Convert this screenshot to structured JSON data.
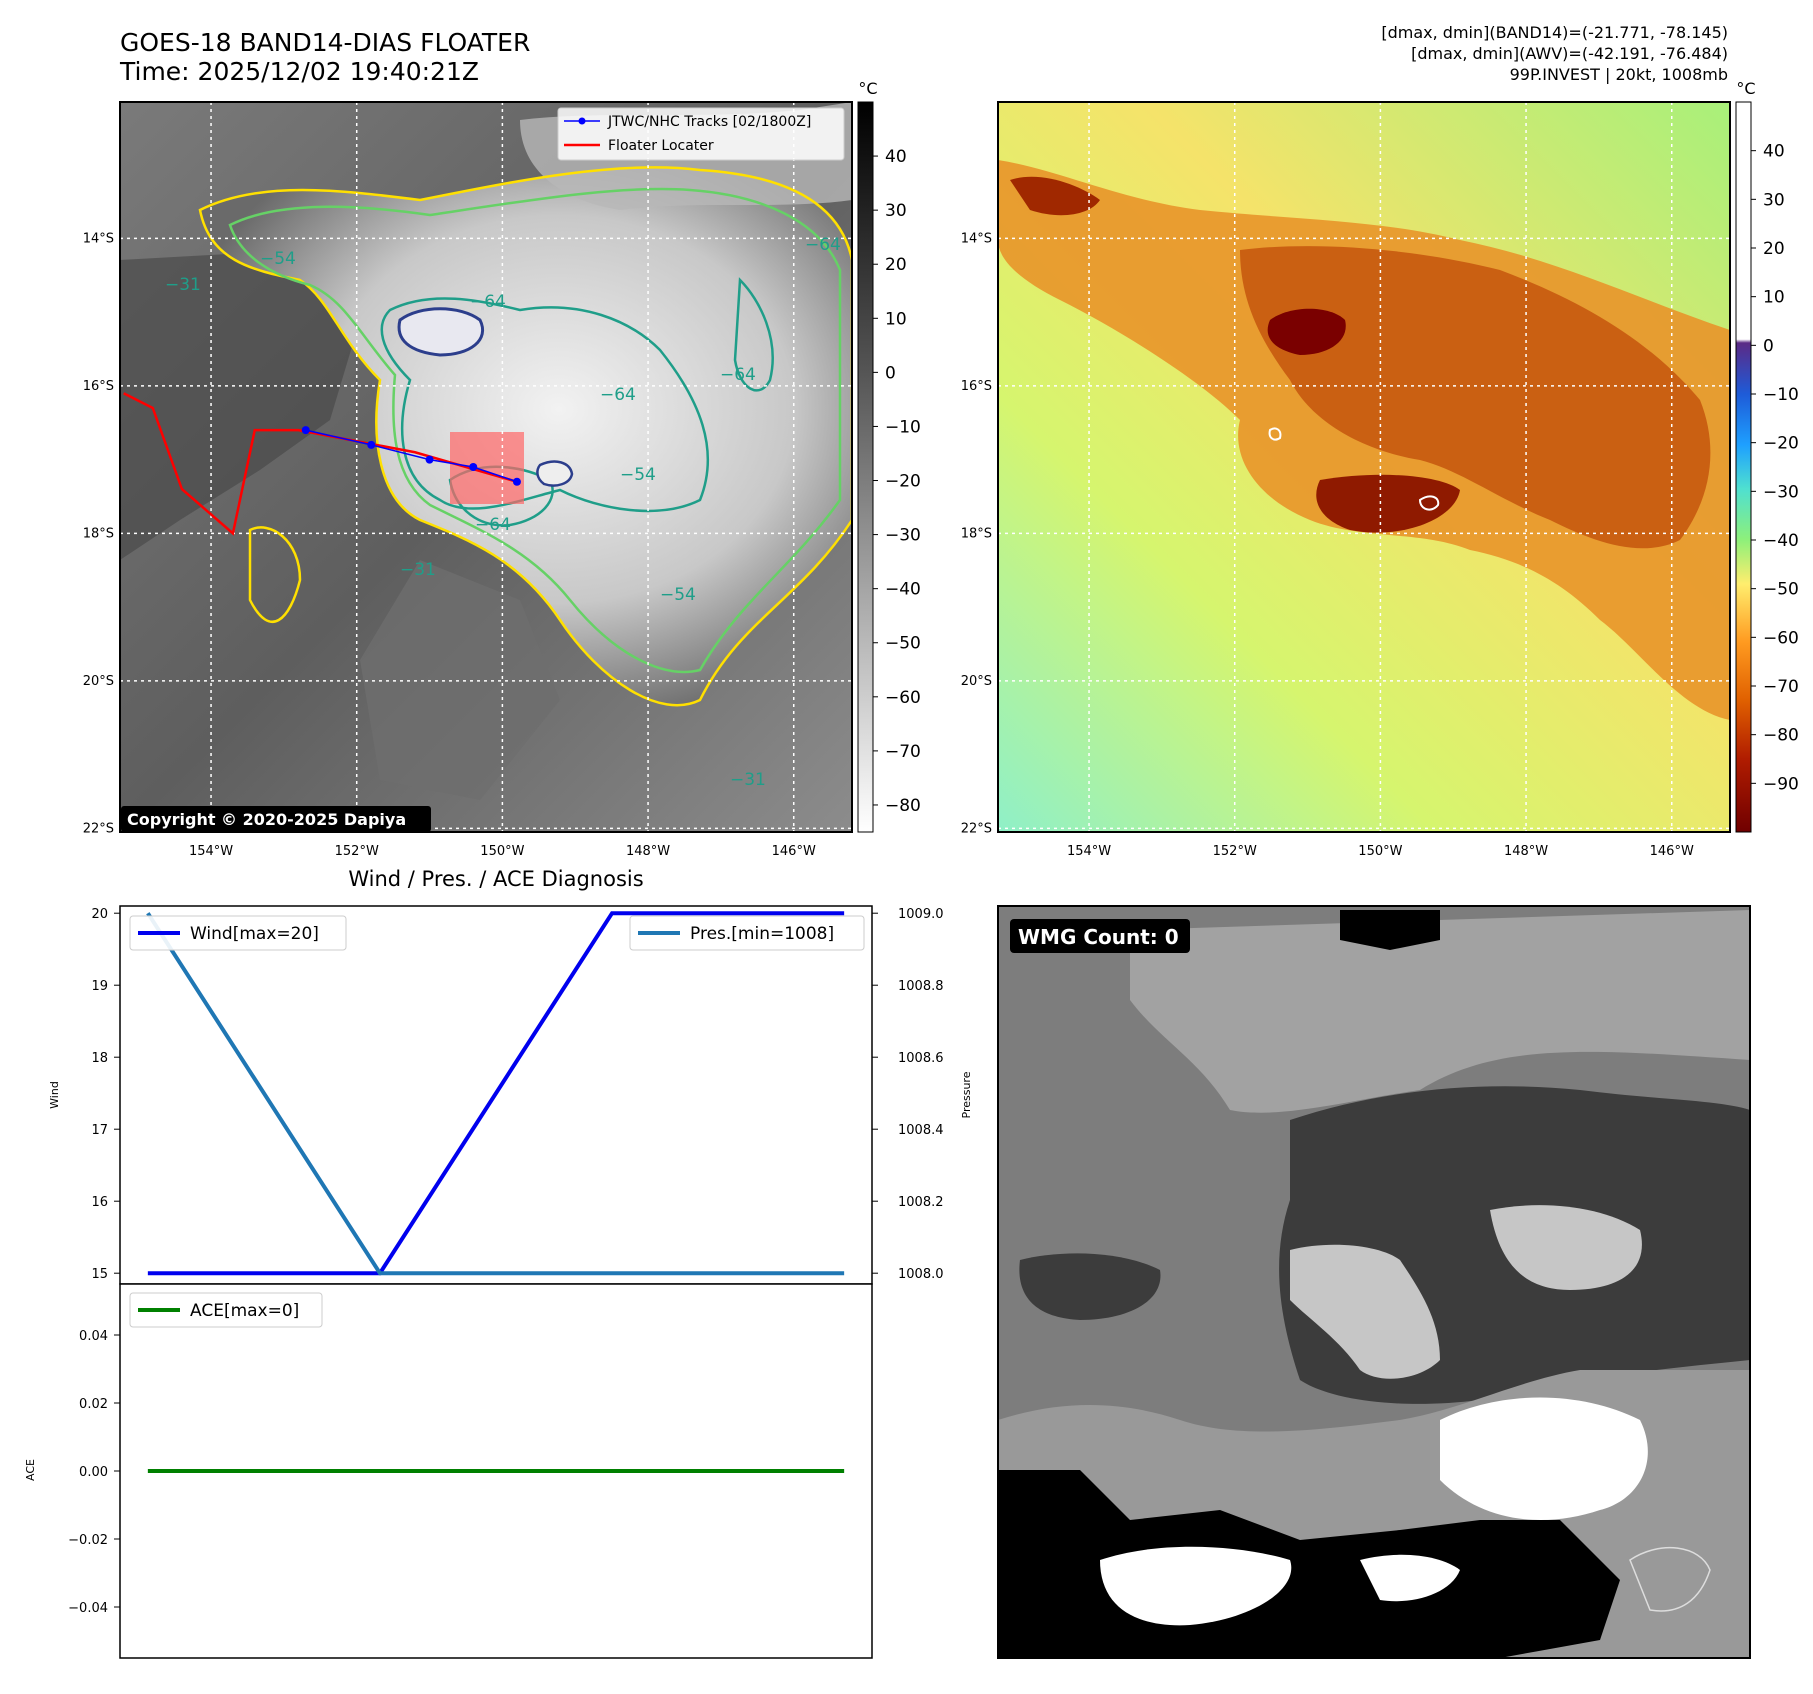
{
  "header": {
    "title": "GOES-18 BAND14-DIAS FLOATER",
    "time": "Time: 2025/12/02 19:40:21Z",
    "info_line1": "[dmax, dmin](BAND14)=(-21.771, -78.145)",
    "info_line2": "[dmax, dmin](AWV)=(-42.191, -76.484)",
    "info_line3": "99P.INVEST | 20kt, 1008mb",
    "copyright": "Copyright © 2020-2025 Dapiya",
    "wmg_label": "WMG Count: 0"
  },
  "colors": {
    "wind": "#0000ee",
    "pressure": "#1f77b4",
    "ace": "#008000",
    "track": "#0000ff",
    "locater": "#ff0000",
    "contour_yellow": "#ffe000",
    "contour_green": "#66d166",
    "contour_teal": "#1f9e89",
    "contour_navy": "#2c3e8c"
  },
  "map": {
    "lat_ticks": [
      "14°S",
      "16°S",
      "18°S",
      "20°S",
      "22°S"
    ],
    "lon_ticks": [
      "154°W",
      "152°W",
      "150°W",
      "148°W",
      "146°W"
    ],
    "lon_values": [
      -154,
      -152,
      -150,
      -148,
      -146
    ],
    "lat_values": [
      -14,
      -16,
      -18,
      -20,
      -22
    ],
    "lon_range": [
      -155.25,
      -145.2
    ],
    "lat_range": [
      -12.15,
      -22.05
    ],
    "contour_labels": [
      "−54",
      "−64",
      "−31",
      "−54",
      "−64",
      "−64",
      "−64",
      "−31",
      "−54",
      "−64",
      "−31"
    ],
    "legend_tracks": "JTWC/NHC Tracks [02/1800Z]",
    "legend_locater": "Floater Locater",
    "track_points": [
      [
        -152.7,
        -16.6
      ],
      [
        -151.8,
        -16.8
      ],
      [
        -151.0,
        -17.0
      ],
      [
        -150.4,
        -17.1
      ],
      [
        -149.8,
        -17.3
      ]
    ],
    "locater_points": [
      [
        -155.2,
        -16.1
      ],
      [
        -154.8,
        -16.3
      ],
      [
        -154.4,
        -17.4
      ],
      [
        -153.7,
        -18.0
      ],
      [
        -153.4,
        -16.6
      ],
      [
        -152.8,
        -16.6
      ],
      [
        -151.2,
        -16.9
      ],
      [
        -149.8,
        -17.3
      ]
    ]
  },
  "colorbar_left": {
    "unit": "°C",
    "ticks": [
      "40",
      "30",
      "20",
      "10",
      "0",
      "−10",
      "−20",
      "−30",
      "−40",
      "−50",
      "−60",
      "−70",
      "−80"
    ],
    "tick_values": [
      40,
      30,
      20,
      10,
      0,
      -10,
      -20,
      -30,
      -40,
      -50,
      -60,
      -70,
      -80
    ],
    "range": [
      50,
      -85
    ]
  },
  "colorbar_right": {
    "unit": "°C",
    "ticks": [
      "40",
      "30",
      "20",
      "10",
      "0",
      "−10",
      "−20",
      "−30",
      "−40",
      "−50",
      "−60",
      "−70",
      "−80",
      "−90"
    ],
    "tick_values": [
      40,
      30,
      20,
      10,
      0,
      -10,
      -20,
      -30,
      -40,
      -50,
      -60,
      -70,
      -80,
      -90
    ],
    "range": [
      50,
      -100
    ]
  },
  "chart_data": {
    "type": "line",
    "title": "Wind / Pres. / ACE Diagnosis",
    "x": [
      0,
      1,
      2,
      3
    ],
    "series": [
      {
        "name": "Wind[max=20]",
        "axis": "Wind",
        "values": [
          15,
          15,
          20,
          20
        ]
      },
      {
        "name": "Pres.[min=1008]",
        "axis": "Pressure",
        "values": [
          1009,
          1008,
          1008,
          1008
        ]
      },
      {
        "name": "ACE[max=0]",
        "axis": "ACE",
        "values": [
          0,
          0,
          0,
          0
        ]
      }
    ],
    "wind_axis": {
      "label": "Wind",
      "ticks": [
        "20",
        "19",
        "18",
        "17",
        "16",
        "15"
      ],
      "tick_values": [
        20,
        19,
        18,
        17,
        16,
        15
      ],
      "ylim": [
        14.85,
        20.1
      ]
    },
    "pressure_axis": {
      "label": "Pressure",
      "ticks": [
        "1009.0",
        "1008.8",
        "1008.6",
        "1008.4",
        "1008.2",
        "1008.0"
      ],
      "tick_values": [
        1009.0,
        1008.8,
        1008.6,
        1008.4,
        1008.2,
        1008.0
      ],
      "ylim": [
        1007.97,
        1009.02
      ]
    },
    "ace_axis": {
      "label": "ACE",
      "ticks": [
        "0.04",
        "0.02",
        "0.00",
        "−0.02",
        "−0.04"
      ],
      "tick_values": [
        0.04,
        0.02,
        0.0,
        -0.02,
        -0.04
      ],
      "ylim": [
        -0.055,
        0.055
      ]
    },
    "xlim": [
      -0.12,
      3.12
    ],
    "grid": false,
    "legend_placement": "top-left / top-right"
  }
}
